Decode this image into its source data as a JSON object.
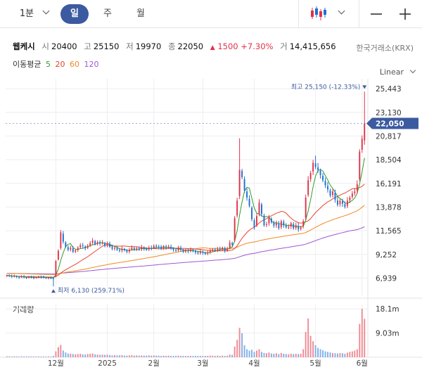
{
  "toolbar": {
    "interval_label": "1분",
    "periods": [
      "일",
      "주",
      "월"
    ],
    "active_period": "일",
    "chart_type_icon": "candlestick-icon",
    "minus_icon": "minus-icon",
    "plus_icon": "plus-icon"
  },
  "quote": {
    "name": "웹케시",
    "open_label": "시",
    "open": "20400",
    "high_label": "고",
    "high": "25150",
    "low_label": "저",
    "low": "19970",
    "close_label": "종",
    "close": "22050",
    "change_arrow": "▲",
    "change": "1500",
    "change_pct": "+7.30%",
    "volume_label": "거",
    "volume": "14,415,656",
    "exchange": "한국거래소(KRX)"
  },
  "ma": {
    "label": "이동평균",
    "periods": [
      {
        "value": "5",
        "color": "#2ca02c"
      },
      {
        "value": "20",
        "color": "#e8452c"
      },
      {
        "value": "60",
        "color": "#f08a24"
      },
      {
        "value": "120",
        "color": "#9b59d0"
      }
    ]
  },
  "scale_mode": "Linear",
  "annotations": {
    "high": "최고 25,150 (-12.33%)",
    "low": "최저 6,130 (259.71%)"
  },
  "current_price": "22,050",
  "colors": {
    "up": "#e0324a",
    "down": "#1f6fd1",
    "accent": "#3c5aa0",
    "grid": "#eeeeee"
  },
  "volume_panel": {
    "label": "거래량",
    "ticks": [
      "18.1m",
      "9.03m"
    ]
  },
  "chart_data": {
    "type": "candlestick",
    "y_ticks": [
      "25,443",
      "23,130",
      "20,817",
      "18,504",
      "16,191",
      "13,878",
      "11,565",
      "9,252",
      "6,939"
    ],
    "ylim": [
      5800,
      26000
    ],
    "x_ticks": [
      "12월",
      "2025",
      "2월",
      "3월",
      "4월",
      "5월",
      "6월"
    ],
    "x_tick_index": [
      20,
      41,
      60,
      80,
      101,
      126,
      145
    ],
    "close": [
      7200,
      7150,
      7100,
      7120,
      7050,
      7000,
      7080,
      7020,
      6980,
      7040,
      7010,
      6960,
      7000,
      7060,
      7020,
      6990,
      6950,
      6970,
      6920,
      6900,
      8600,
      9600,
      11400,
      10500,
      10000,
      9700,
      9900,
      9500,
      9650,
      9900,
      10150,
      10050,
      9850,
      10100,
      10350,
      10600,
      10250,
      10450,
      10300,
      10400,
      10100,
      10350,
      10000,
      9800,
      9900,
      9700,
      9600,
      9800,
      9650,
      9500,
      9700,
      9900,
      9750,
      9850,
      9700,
      9950,
      9800,
      9700,
      9900,
      9850,
      10100,
      10000,
      9950,
      9800,
      10050,
      9900,
      10000,
      9850,
      9700,
      9600,
      9900,
      9700,
      9500,
      9650,
      9550,
      9700,
      9600,
      9450,
      9350,
      9550,
      9400,
      9300,
      9450,
      9600,
      9750,
      9650,
      9800,
      9700,
      9900,
      9600,
      9800,
      10400,
      10200,
      12800,
      14500,
      17500,
      16800,
      15500,
      14800,
      14000,
      12700,
      11900,
      13000,
      14300,
      13200,
      12100,
      12200,
      12800,
      12400,
      12050,
      12300,
      11800,
      12500,
      12100,
      11900,
      11900,
      12300,
      11800,
      12100,
      11700,
      11900,
      12500,
      14800,
      16500,
      17200,
      18200,
      17800,
      17500,
      17000,
      16500,
      16000,
      15600,
      15000,
      15400,
      14600,
      14100,
      14500,
      14200,
      13900,
      14500,
      14800,
      15200,
      15400,
      16100,
      19300,
      20550,
      22050
    ],
    "volume": [
      0.35,
      0.3,
      0.28,
      0.32,
      0.3,
      0.25,
      0.3,
      0.28,
      0.27,
      0.3,
      0.28,
      0.26,
      0.28,
      0.3,
      0.27,
      0.26,
      0.25,
      0.27,
      0.26,
      0.5,
      2.2,
      3.8,
      4.6,
      2.5,
      1.8,
      1.4,
      1.3,
      1.2,
      1.1,
      1.2,
      1.3,
      1.1,
      1.0,
      1.2,
      1.3,
      1.4,
      1.1,
      1.0,
      0.9,
      1.0,
      0.9,
      1.0,
      0.8,
      0.7,
      0.8,
      0.7,
      0.7,
      0.8,
      0.6,
      0.6,
      0.7,
      0.8,
      0.6,
      0.7,
      0.6,
      0.7,
      0.6,
      0.6,
      0.7,
      0.6,
      0.7,
      0.6,
      0.6,
      0.5,
      0.6,
      0.5,
      0.6,
      0.5,
      0.5,
      0.5,
      0.6,
      0.5,
      0.5,
      0.5,
      0.5,
      0.5,
      0.5,
      0.5,
      0.5,
      0.5,
      0.5,
      0.5,
      0.5,
      0.6,
      0.6,
      0.5,
      0.6,
      0.5,
      0.6,
      0.5,
      0.6,
      1.0,
      0.9,
      4.0,
      6.5,
      11.0,
      9.0,
      4.5,
      3.0,
      2.5,
      2.8,
      2.0,
      2.5,
      3.0,
      2.0,
      1.6,
      1.5,
      1.8,
      1.4,
      1.3,
      1.5,
      1.2,
      1.6,
      1.3,
      1.2,
      1.1,
      1.3,
      1.2,
      1.3,
      1.2,
      1.3,
      3.0,
      9.5,
      14.5,
      8.0,
      6.0,
      4.5,
      3.5,
      3.0,
      2.6,
      2.2,
      2.0,
      1.8,
      1.6,
      1.5,
      1.4,
      1.6,
      1.5,
      1.3,
      1.7,
      2.0,
      2.2,
      2.5,
      3.0,
      12.5,
      18.1,
      14.4
    ]
  }
}
